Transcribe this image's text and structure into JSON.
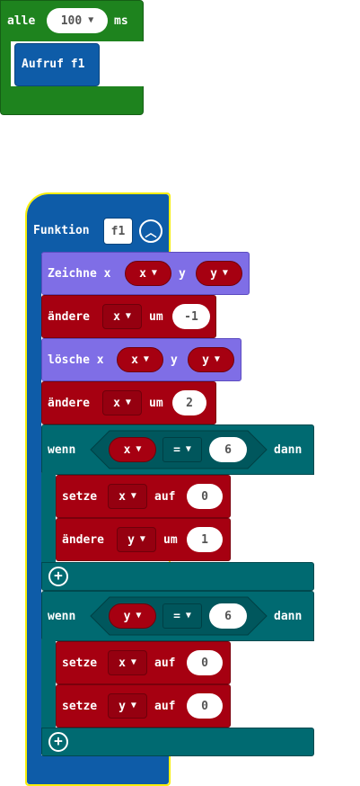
{
  "event_block": {
    "label_every": "alle",
    "interval": "100",
    "unit": "ms",
    "call_label": "Aufruf f1"
  },
  "function_block": {
    "label": "Funktion",
    "name": "f1",
    "collapse_icon": "chevron-up-circle-icon"
  },
  "statements": {
    "plot": {
      "label": "Zeichne x",
      "x_var": "x",
      "y_label": "y",
      "y_var": "y"
    },
    "change1": {
      "label": "ändere",
      "var": "x",
      "by_label": "um",
      "value": "-1"
    },
    "unplot": {
      "label": "lösche x",
      "x_var": "x",
      "y_label": "y",
      "y_var": "y"
    },
    "change2": {
      "label": "ändere",
      "var": "x",
      "by_label": "um",
      "value": "2"
    },
    "if1": {
      "label": "wenn",
      "var": "x",
      "op": "=",
      "value": "6",
      "then_label": "dann",
      "body": [
        {
          "label": "setze",
          "var": "x",
          "to_label": "auf",
          "value": "0"
        },
        {
          "label": "ändere",
          "var": "y",
          "to_label": "um",
          "value": "1"
        }
      ]
    },
    "if2": {
      "label": "wenn",
      "var": "y",
      "op": "=",
      "value": "6",
      "then_label": "dann",
      "body": [
        {
          "label": "setze",
          "var": "x",
          "to_label": "auf",
          "value": "0"
        },
        {
          "label": "setze",
          "var": "y",
          "to_label": "auf",
          "value": "0"
        }
      ]
    }
  },
  "colors": {
    "event_green": "#1e831e",
    "function_blue": "#0e5ca8",
    "led_purple": "#7f6ee6",
    "variable_red": "#a60011",
    "logic_teal": "#006a71",
    "selection_yellow": "#f7ee0a"
  }
}
